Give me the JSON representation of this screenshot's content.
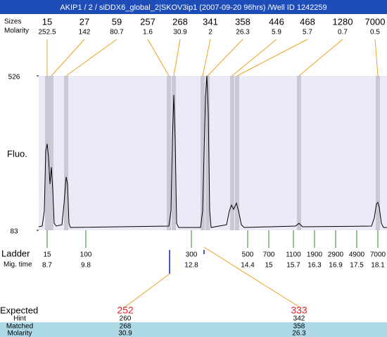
{
  "header": {
    "title": "AKIP1 / 2 / siDDX6_global_2|SKOV3ip1 (2007-09-20 96hrs) /Well ID 1242259"
  },
  "peaks_table": {
    "labels": [
      "Sizes",
      "Molarity"
    ],
    "sizes": [
      15,
      27,
      59,
      257,
      268,
      341,
      358,
      446,
      468,
      1280,
      7000
    ],
    "molarity": [
      252.5,
      142,
      80.7,
      1.6,
      30.9,
      2,
      26.3,
      5.9,
      5.7,
      0.7,
      0.5
    ]
  },
  "electropherogram": {
    "y_label": "Fluo.",
    "ylim": [
      83,
      526
    ],
    "yticks": [
      526,
      83
    ],
    "xlim": [
      8.46,
      18.36
    ],
    "trace": {
      "x": [
        8.46,
        8.56,
        8.62,
        8.66,
        8.7,
        8.74,
        8.78,
        8.82,
        8.86,
        8.9,
        8.96,
        9.12,
        9.18,
        9.24,
        9.28,
        9.32,
        9.36,
        12.16,
        12.22,
        12.26,
        12.3,
        12.34,
        12.38,
        12.44,
        13.06,
        13.12,
        13.16,
        13.2,
        13.24,
        13.28,
        13.32,
        13.36,
        13.8,
        13.88,
        13.94,
        14.0,
        14.08,
        14.14,
        14.22,
        14.3,
        15.76,
        15.86,
        15.96,
        17.92,
        18.0,
        18.06,
        18.1,
        18.14,
        18.2,
        18.26,
        18.36
      ],
      "y": [
        93,
        95,
        139,
        310,
        331,
        290,
        216,
        264,
        200,
        103,
        95,
        99,
        159,
        236,
        216,
        103,
        91,
        95,
        139,
        341,
        471,
        341,
        103,
        91,
        91,
        139,
        304,
        465,
        526,
        421,
        139,
        91,
        99,
        139,
        155,
        143,
        161,
        139,
        99,
        91,
        95,
        103,
        93,
        95,
        119,
        159,
        163,
        149,
        103,
        91,
        91
      ]
    }
  },
  "ladder": {
    "labels": [
      "Ladder",
      "Mig. time"
    ],
    "sizes": [
      15,
      100,
      300,
      500,
      700,
      1100,
      1900,
      2900,
      4900,
      7000
    ],
    "mig_times": [
      8.7,
      9.8,
      12.8,
      14.4,
      15,
      15.7,
      16.3,
      16.9,
      17.5,
      18.1
    ]
  },
  "expected": {
    "label": "Expected",
    "row_labels": [
      "Hint",
      "Matched",
      "Molarity"
    ],
    "columns": [
      {
        "expected": 252,
        "hint": 260,
        "matched": 268,
        "molarity": 30.9
      },
      {
        "expected": 333,
        "hint": 342,
        "matched": 358,
        "molarity": 26.3
      }
    ]
  }
}
